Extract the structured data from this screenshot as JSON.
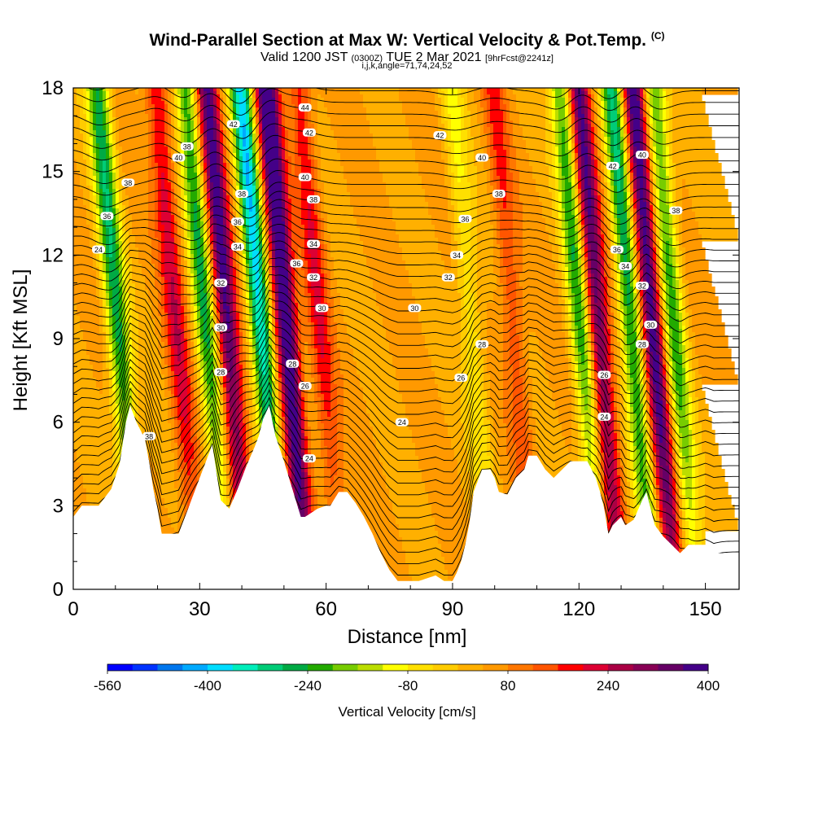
{
  "titles": {
    "main": "Wind-Parallel Section at Max W: Vertical Velocity & Pot.Temp.",
    "copyright": "(C)",
    "valid_prefix": "Valid 1200 JST",
    "valid_utc": "(0300Z)",
    "valid_date": "TUE 2 Mar 2021",
    "forecast": "[9hrFcst@2241z]",
    "params": "i,j,k,angle=71,74,24,52"
  },
  "chart_data": {
    "type": "heatmap",
    "xlabel": "Distance [nm]",
    "ylabel": "Height [Kft MSL]",
    "xlim": [
      0,
      158
    ],
    "ylim": [
      0,
      18
    ],
    "x_ticks": [
      0,
      30,
      60,
      90,
      120,
      150
    ],
    "y_ticks": [
      0,
      3,
      6,
      9,
      12,
      15,
      18
    ],
    "colorbar": {
      "label": "Vertical Velocity [cm/s]",
      "tick_labels": [
        "-560",
        "-400",
        "-240",
        "-80",
        "80",
        "240",
        "400"
      ],
      "colors": [
        "#0000ff",
        "#0033ff",
        "#0077ee",
        "#00aaff",
        "#00ddff",
        "#00eebb",
        "#00cc77",
        "#00aa44",
        "#22aa00",
        "#77cc00",
        "#bbdd00",
        "#ffff00",
        "#ffe000",
        "#ffcc00",
        "#ffb000",
        "#ff9900",
        "#ff7700",
        "#ff5500",
        "#ff0000",
        "#dd0033",
        "#aa0044",
        "#880055",
        "#660066",
        "#440088"
      ]
    },
    "velocity_bands": [
      {
        "x": 14,
        "w": -300
      },
      {
        "x": 28,
        "w": 180
      },
      {
        "x": 35,
        "w": -280
      },
      {
        "x": 40,
        "w": 340
      },
      {
        "x": 48,
        "w": -420
      },
      {
        "x": 54,
        "w": 420
      },
      {
        "x": 62,
        "w": 150
      },
      {
        "x": 98,
        "w": -120
      },
      {
        "x": 108,
        "w": 120
      },
      {
        "x": 124,
        "w": -280
      },
      {
        "x": 128,
        "w": 330
      },
      {
        "x": 136,
        "w": -320
      },
      {
        "x": 141,
        "w": 380
      },
      {
        "x": 146,
        "w": -260
      }
    ],
    "terrain": [
      [
        0,
        2.6
      ],
      [
        2,
        3.0
      ],
      [
        6,
        3.0
      ],
      [
        9,
        3.6
      ],
      [
        11,
        4.5
      ],
      [
        12.5,
        6.0
      ],
      [
        13.5,
        6.6
      ],
      [
        15,
        6.0
      ],
      [
        17,
        5.4
      ],
      [
        18,
        4.6
      ],
      [
        19,
        3.6
      ],
      [
        20,
        2.9
      ],
      [
        21,
        2.0
      ],
      [
        25,
        2.0
      ],
      [
        26,
        2.4
      ],
      [
        28,
        3.2
      ],
      [
        30,
        4.0
      ],
      [
        32,
        4.8
      ],
      [
        33,
        5.2
      ],
      [
        34,
        4.2
      ],
      [
        35,
        3.2
      ],
      [
        37,
        2.9
      ],
      [
        39,
        3.6
      ],
      [
        41,
        4.4
      ],
      [
        43,
        5.1
      ],
      [
        44,
        5.5
      ],
      [
        45,
        6.1
      ],
      [
        46.5,
        6.6
      ],
      [
        48,
        5.5
      ],
      [
        50,
        4.6
      ],
      [
        52,
        3.6
      ],
      [
        54,
        2.6
      ],
      [
        55,
        2.6
      ],
      [
        58,
        2.9
      ],
      [
        60,
        3.0
      ],
      [
        61,
        3.0
      ],
      [
        63,
        3.5
      ],
      [
        65,
        3.5
      ],
      [
        67,
        3.1
      ],
      [
        69,
        2.6
      ],
      [
        71,
        2.0
      ],
      [
        73,
        1.3
      ],
      [
        75,
        0.7
      ],
      [
        77,
        0.3
      ],
      [
        82,
        0.3
      ],
      [
        86,
        0.5
      ],
      [
        88,
        0.3
      ],
      [
        90,
        0.3
      ],
      [
        91,
        0.6
      ],
      [
        92,
        1.0
      ],
      [
        93,
        1.6
      ],
      [
        94,
        2.4
      ],
      [
        95,
        3.5
      ],
      [
        97,
        4.3
      ],
      [
        99,
        4.3
      ],
      [
        100,
        4.0
      ],
      [
        101,
        3.5
      ],
      [
        103,
        3.4
      ],
      [
        105,
        4.0
      ],
      [
        107,
        4.3
      ],
      [
        108,
        4.8
      ],
      [
        110,
        4.8
      ],
      [
        112,
        4.3
      ],
      [
        114,
        4.0
      ],
      [
        116,
        4.3
      ],
      [
        118,
        4.6
      ],
      [
        122,
        4.6
      ],
      [
        124,
        4.0
      ],
      [
        125,
        3.5
      ],
      [
        126,
        2.9
      ],
      [
        127,
        2.0
      ],
      [
        128,
        2.3
      ],
      [
        130,
        2.6
      ],
      [
        131,
        2.3
      ],
      [
        133,
        2.5
      ],
      [
        135,
        3.2
      ],
      [
        136,
        3.5
      ],
      [
        137,
        2.9
      ],
      [
        138,
        2.3
      ],
      [
        140,
        1.9
      ],
      [
        142,
        1.6
      ],
      [
        144,
        1.3
      ],
      [
        146,
        1.6
      ],
      [
        150,
        1.6
      ],
      [
        152,
        1.3
      ],
      [
        158,
        1.3
      ]
    ],
    "theta_isentropes": {
      "start": 286,
      "step": 1,
      "count": 48,
      "labels": [
        {
          "text": "24",
          "x": 6,
          "y": 12.2
        },
        {
          "text": "36",
          "x": 8,
          "y": 13.4
        },
        {
          "text": "38",
          "x": 13,
          "y": 14.6
        },
        {
          "text": "38",
          "x": 27,
          "y": 15.9
        },
        {
          "text": "40",
          "x": 25,
          "y": 15.5
        },
        {
          "text": "42",
          "x": 38,
          "y": 16.7
        },
        {
          "text": "38",
          "x": 40,
          "y": 14.2
        },
        {
          "text": "36",
          "x": 39,
          "y": 13.2
        },
        {
          "text": "34",
          "x": 39,
          "y": 12.3
        },
        {
          "text": "32",
          "x": 35,
          "y": 11.0
        },
        {
          "text": "30",
          "x": 35,
          "y": 9.4
        },
        {
          "text": "28",
          "x": 35,
          "y": 7.8
        },
        {
          "text": "38",
          "x": 18,
          "y": 5.5
        },
        {
          "text": "44",
          "x": 55,
          "y": 17.3
        },
        {
          "text": "42",
          "x": 56,
          "y": 16.4
        },
        {
          "text": "40",
          "x": 55,
          "y": 14.8
        },
        {
          "text": "38",
          "x": 57,
          "y": 14.0
        },
        {
          "text": "34",
          "x": 57,
          "y": 12.4
        },
        {
          "text": "36",
          "x": 53,
          "y": 11.7
        },
        {
          "text": "32",
          "x": 57,
          "y": 11.2
        },
        {
          "text": "30",
          "x": 59,
          "y": 10.1
        },
        {
          "text": "28",
          "x": 52,
          "y": 8.1
        },
        {
          "text": "26",
          "x": 55,
          "y": 7.3
        },
        {
          "text": "24",
          "x": 56,
          "y": 4.7
        },
        {
          "text": "42",
          "x": 87,
          "y": 16.3
        },
        {
          "text": "40",
          "x": 97,
          "y": 15.5
        },
        {
          "text": "38",
          "x": 101,
          "y": 14.2
        },
        {
          "text": "36",
          "x": 93,
          "y": 13.3
        },
        {
          "text": "34",
          "x": 91,
          "y": 12.0
        },
        {
          "text": "32",
          "x": 89,
          "y": 11.2
        },
        {
          "text": "30",
          "x": 81,
          "y": 10.1
        },
        {
          "text": "28",
          "x": 97,
          "y": 8.8
        },
        {
          "text": "26",
          "x": 92,
          "y": 7.6
        },
        {
          "text": "24",
          "x": 78,
          "y": 6.0
        },
        {
          "text": "42",
          "x": 128,
          "y": 15.2
        },
        {
          "text": "40",
          "x": 135,
          "y": 15.6
        },
        {
          "text": "38",
          "x": 143,
          "y": 13.6
        },
        {
          "text": "36",
          "x": 129,
          "y": 12.2
        },
        {
          "text": "34",
          "x": 131,
          "y": 11.6
        },
        {
          "text": "32",
          "x": 135,
          "y": 10.9
        },
        {
          "text": "30",
          "x": 137,
          "y": 9.5
        },
        {
          "text": "28",
          "x": 135,
          "y": 8.8
        },
        {
          "text": "26",
          "x": 126,
          "y": 7.7
        },
        {
          "text": "24",
          "x": 126,
          "y": 6.2
        }
      ]
    }
  }
}
